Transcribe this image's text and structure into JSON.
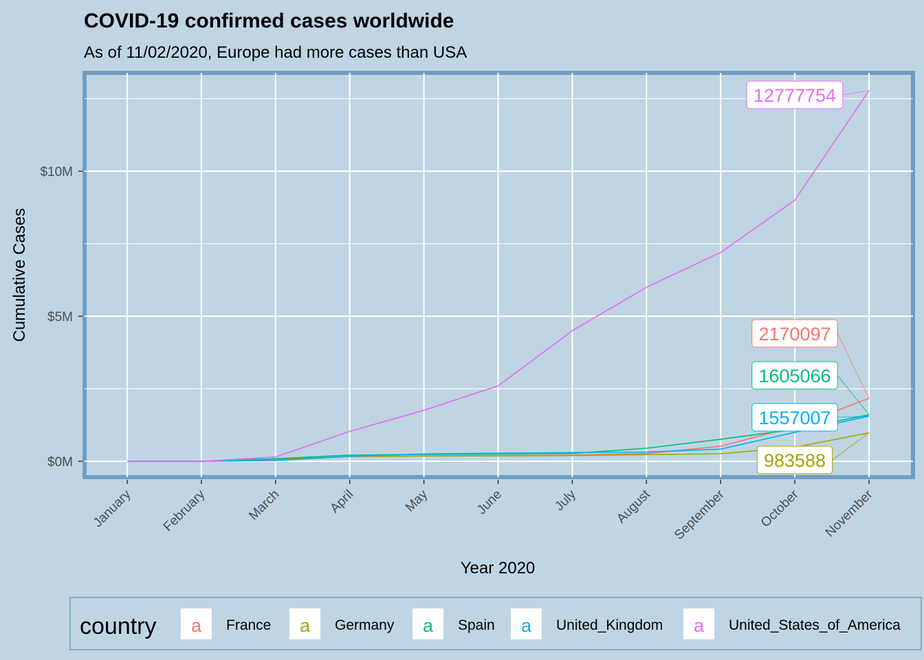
{
  "chart_data": {
    "type": "line",
    "title": "COVID-19 confirmed cases worldwide",
    "subtitle": "As of 11/02/2020, Europe had more cases than USA",
    "xlabel": "Year 2020",
    "ylabel": "Cumulative Cases",
    "categories": [
      "January",
      "February",
      "March",
      "April",
      "May",
      "June",
      "July",
      "August",
      "September",
      "October",
      "November"
    ],
    "y_ticks": [
      {
        "value": 0,
        "label": "$0M"
      },
      {
        "value": 5000000,
        "label": "$5M"
      },
      {
        "value": 10000000,
        "label": "$10M"
      }
    ],
    "ylim": [
      -600000,
      13600000
    ],
    "grid": true,
    "legend_title": "country",
    "legend_position": "bottom",
    "series": [
      {
        "name": "France",
        "color": "#f8766d",
        "values": [
          0,
          12,
          52000,
          167000,
          188000,
          195000,
          215000,
          270000,
          520000,
          1200000,
          2170097
        ],
        "end_label": "2170097"
      },
      {
        "name": "Germany",
        "color": "#a3a500",
        "values": [
          0,
          16,
          72000,
          160000,
          180000,
          187000,
          200000,
          230000,
          260000,
          480000,
          983588
        ],
        "end_label": "983588"
      },
      {
        "name": "Spain",
        "color": "#00bf7d",
        "values": [
          0,
          1,
          90000,
          215000,
          240000,
          250000,
          270000,
          450000,
          760000,
          1100000,
          1605066
        ],
        "end_label": "1605066"
      },
      {
        "name": "United_Kingdom",
        "color": "#00b0f6",
        "values": [
          0,
          2,
          25000,
          170000,
          255000,
          280000,
          300000,
          320000,
          420000,
          1000000,
          1557007
        ],
        "end_label": "1557007"
      },
      {
        "name": "United_States_of_America",
        "color": "#e76bf3",
        "values": [
          0,
          10,
          150000,
          1030000,
          1760000,
          2600000,
          4500000,
          6000000,
          7200000,
          9000000,
          12777754
        ],
        "end_label": "12777754"
      }
    ]
  }
}
